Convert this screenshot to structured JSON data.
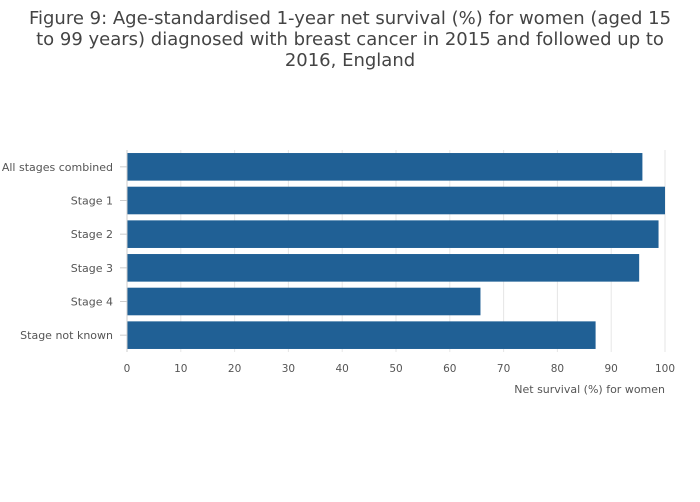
{
  "chart_data": {
    "type": "bar",
    "orientation": "horizontal",
    "title": "Figure 9: Age-standardised 1-year net survival (%) for women (aged 15 to 99 years) diagnosed with breast cancer in 2015 and followed up to 2016, England",
    "categories": [
      "All stages combined",
      "Stage 1",
      "Stage 2",
      "Stage 3",
      "Stage 4",
      "Stage not known"
    ],
    "values": [
      95.8,
      100,
      98.8,
      95.2,
      65.7,
      87.1
    ],
    "xlabel": "Net survival (%) for women",
    "ylabel": "",
    "xlim": [
      0,
      100
    ],
    "xticks": [
      "0",
      "10",
      "20",
      "30",
      "40",
      "50",
      "60",
      "70",
      "80",
      "90",
      "100"
    ],
    "grid": true,
    "legend": "none",
    "bar_color": "#206095",
    "grid_color": "#e6e6e6",
    "axis_color": "#cccccc"
  }
}
